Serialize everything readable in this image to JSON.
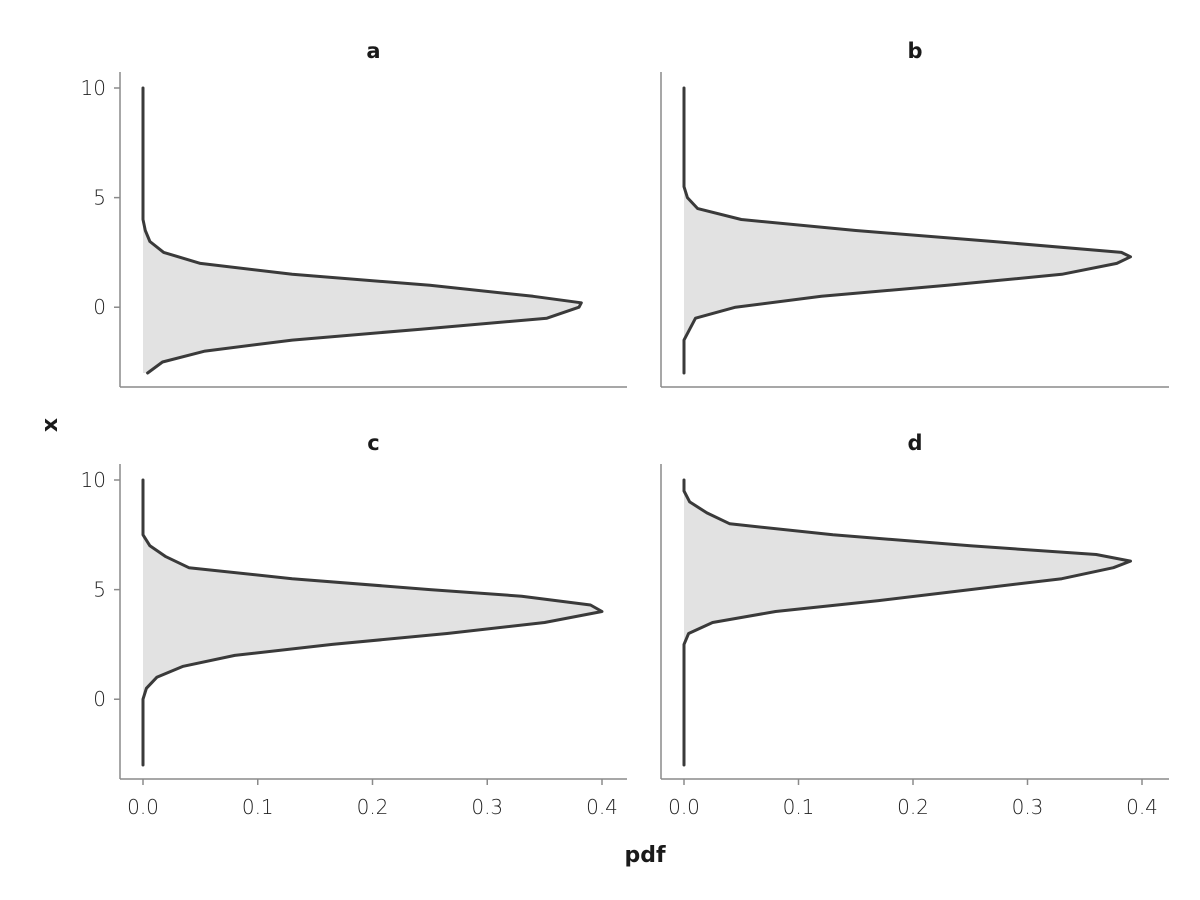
{
  "chart_data": {
    "type": "area",
    "layout": "2x2 facets, vertical density curves",
    "xlabel": "pdf",
    "ylabel": "x",
    "xlim": [
      0,
      0.4
    ],
    "ylim": [
      -3,
      10
    ],
    "x_ticks": [
      0.0,
      0.1,
      0.2,
      0.3,
      0.4
    ],
    "x_tick_labels": [
      "0.0",
      "0.1",
      "0.2",
      "0.3",
      "0.4"
    ],
    "y_ticks": [
      0,
      5,
      10
    ],
    "y_tick_labels": [
      "0",
      "5",
      "10"
    ],
    "grid": false,
    "line_color": "#3a3a3a",
    "fill_color": "#e2e2e2",
    "panels": [
      {
        "title": "a",
        "points": [
          {
            "x": -3.0,
            "pdf": 0.004
          },
          {
            "x": -2.5,
            "pdf": 0.017
          },
          {
            "x": -2.0,
            "pdf": 0.054
          },
          {
            "x": -1.5,
            "pdf": 0.13
          },
          {
            "x": -1.0,
            "pdf": 0.242
          },
          {
            "x": -0.5,
            "pdf": 0.352
          },
          {
            "x": 0.0,
            "pdf": 0.38
          },
          {
            "x": 0.2,
            "pdf": 0.382
          },
          {
            "x": 0.5,
            "pdf": 0.34
          },
          {
            "x": 1.0,
            "pdf": 0.25
          },
          {
            "x": 1.5,
            "pdf": 0.13
          },
          {
            "x": 2.0,
            "pdf": 0.05
          },
          {
            "x": 2.5,
            "pdf": 0.018
          },
          {
            "x": 3.0,
            "pdf": 0.006
          },
          {
            "x": 3.5,
            "pdf": 0.002
          },
          {
            "x": 4.0,
            "pdf": 0.0
          },
          {
            "x": 10.0,
            "pdf": 0.0
          }
        ]
      },
      {
        "title": "b",
        "points": [
          {
            "x": -3.0,
            "pdf": 0.0
          },
          {
            "x": -1.5,
            "pdf": 0.0
          },
          {
            "x": -1.0,
            "pdf": 0.005
          },
          {
            "x": -0.5,
            "pdf": 0.01
          },
          {
            "x": 0.0,
            "pdf": 0.045
          },
          {
            "x": 0.5,
            "pdf": 0.12
          },
          {
            "x": 1.0,
            "pdf": 0.23
          },
          {
            "x": 1.5,
            "pdf": 0.33
          },
          {
            "x": 2.0,
            "pdf": 0.378
          },
          {
            "x": 2.3,
            "pdf": 0.39
          },
          {
            "x": 2.5,
            "pdf": 0.382
          },
          {
            "x": 3.0,
            "pdf": 0.27
          },
          {
            "x": 3.5,
            "pdf": 0.15
          },
          {
            "x": 4.0,
            "pdf": 0.05
          },
          {
            "x": 4.5,
            "pdf": 0.012
          },
          {
            "x": 5.0,
            "pdf": 0.003
          },
          {
            "x": 5.5,
            "pdf": 0.0
          },
          {
            "x": 10.0,
            "pdf": 0.0
          }
        ]
      },
      {
        "title": "c",
        "points": [
          {
            "x": -3.0,
            "pdf": 0.0
          },
          {
            "x": 0.0,
            "pdf": 0.0
          },
          {
            "x": 0.5,
            "pdf": 0.003
          },
          {
            "x": 1.0,
            "pdf": 0.012
          },
          {
            "x": 1.5,
            "pdf": 0.035
          },
          {
            "x": 2.0,
            "pdf": 0.08
          },
          {
            "x": 2.5,
            "pdf": 0.165
          },
          {
            "x": 3.0,
            "pdf": 0.265
          },
          {
            "x": 3.5,
            "pdf": 0.35
          },
          {
            "x": 4.0,
            "pdf": 0.4
          },
          {
            "x": 4.3,
            "pdf": 0.39
          },
          {
            "x": 4.7,
            "pdf": 0.33
          },
          {
            "x": 5.0,
            "pdf": 0.25
          },
          {
            "x": 5.5,
            "pdf": 0.13
          },
          {
            "x": 6.0,
            "pdf": 0.04
          },
          {
            "x": 6.5,
            "pdf": 0.02
          },
          {
            "x": 7.0,
            "pdf": 0.006
          },
          {
            "x": 7.5,
            "pdf": 0.0
          },
          {
            "x": 10.0,
            "pdf": 0.0
          }
        ]
      },
      {
        "title": "d",
        "points": [
          {
            "x": -3.0,
            "pdf": 0.0
          },
          {
            "x": 2.5,
            "pdf": 0.0
          },
          {
            "x": 3.0,
            "pdf": 0.004
          },
          {
            "x": 3.5,
            "pdf": 0.025
          },
          {
            "x": 4.0,
            "pdf": 0.08
          },
          {
            "x": 4.5,
            "pdf": 0.17
          },
          {
            "x": 5.0,
            "pdf": 0.25
          },
          {
            "x": 5.5,
            "pdf": 0.33
          },
          {
            "x": 6.0,
            "pdf": 0.375
          },
          {
            "x": 6.3,
            "pdf": 0.39
          },
          {
            "x": 6.6,
            "pdf": 0.36
          },
          {
            "x": 7.0,
            "pdf": 0.25
          },
          {
            "x": 7.5,
            "pdf": 0.13
          },
          {
            "x": 8.0,
            "pdf": 0.04
          },
          {
            "x": 8.5,
            "pdf": 0.02
          },
          {
            "x": 9.0,
            "pdf": 0.005
          },
          {
            "x": 9.5,
            "pdf": 0.0
          },
          {
            "x": 10.0,
            "pdf": 0.0
          }
        ]
      }
    ]
  }
}
